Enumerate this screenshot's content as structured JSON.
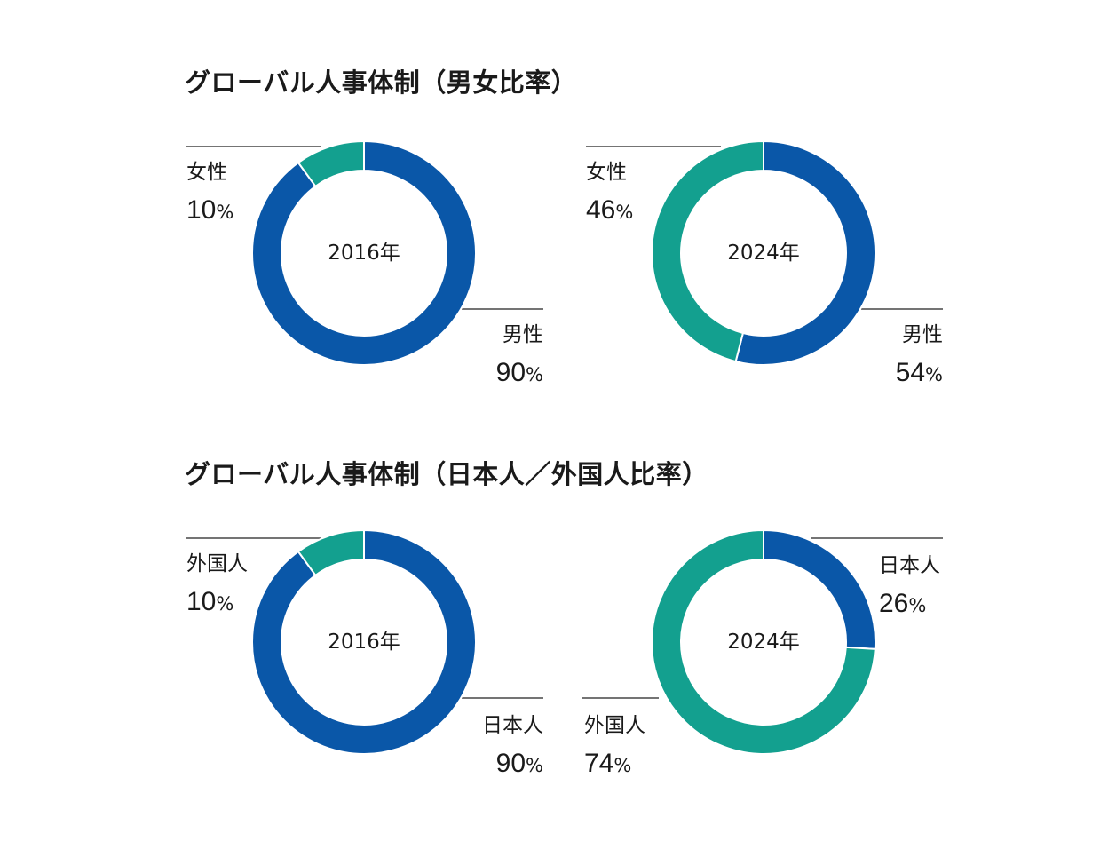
{
  "titles": {
    "gender": "グローバル人事体制（男女比率）",
    "nationality": "グローバル人事体制（日本人／外国人比率）"
  },
  "colors": {
    "blue": "#0a57a8",
    "teal": "#13a08f"
  },
  "percent_sign": "%",
  "chart_data": [
    {
      "type": "pie",
      "variant": "donut",
      "center_label": "2016年",
      "slices": [
        {
          "label": "男性",
          "value": 90,
          "display": "90",
          "color": "#0a57a8"
        },
        {
          "label": "女性",
          "value": 10,
          "display": "10",
          "color": "#13a08f"
        }
      ]
    },
    {
      "type": "pie",
      "variant": "donut",
      "center_label": "2024年",
      "slices": [
        {
          "label": "男性",
          "value": 54,
          "display": "54",
          "color": "#0a57a8"
        },
        {
          "label": "女性",
          "value": 46,
          "display": "46",
          "color": "#13a08f"
        }
      ]
    },
    {
      "type": "pie",
      "variant": "donut",
      "center_label": "2016年",
      "slices": [
        {
          "label": "日本人",
          "value": 90,
          "display": "90",
          "color": "#0a57a8"
        },
        {
          "label": "外国人",
          "value": 10,
          "display": "10",
          "color": "#13a08f"
        }
      ]
    },
    {
      "type": "pie",
      "variant": "donut",
      "center_label": "2024年",
      "slices": [
        {
          "label": "日本人",
          "value": 26,
          "display": "26",
          "color": "#0a57a8"
        },
        {
          "label": "外国人",
          "value": 74,
          "display": "74",
          "color": "#13a08f"
        }
      ]
    }
  ]
}
